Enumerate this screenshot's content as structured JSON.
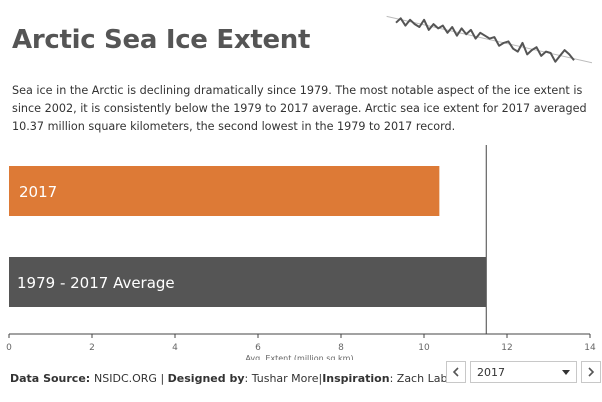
{
  "header": {
    "title": "Arctic Sea Ice Extent",
    "description": "Sea ice in the Arctic is declining dramatically since 1979. The most notable aspect of the ice extent is since 2002, it is consistently below the 1979 to 2017 average. Arctic sea ice extent for 2017 averaged 10.37 million square kilometers, the second lowest in the 1979 to 2017 record."
  },
  "sparkline": {
    "values": [
      12.3,
      12.6,
      12.1,
      12.5,
      12.2,
      12.0,
      12.5,
      11.8,
      12.2,
      11.9,
      12.1,
      11.6,
      12.0,
      11.4,
      11.9,
      11.5,
      11.8,
      11.2,
      11.6,
      11.4,
      11.2,
      11.3,
      10.7,
      10.9,
      11.0,
      10.5,
      10.3,
      10.9,
      10.1,
      10.4,
      10.6,
      10.0,
      10.3,
      10.2,
      9.6,
      10.0,
      10.4,
      10.1,
      9.7
    ],
    "color": "#555555",
    "trend_color": "#bbbbbb"
  },
  "chart_data": {
    "type": "bar",
    "orientation": "horizontal",
    "categories": [
      "2017",
      "1979 - 2017 Average"
    ],
    "values": [
      10.37,
      11.5
    ],
    "colors": [
      "#dd7a36",
      "#555555"
    ],
    "xlabel": "Avg. Extent (million sq km)",
    "xlim": [
      0,
      14
    ],
    "xticks": [
      0,
      2,
      4,
      6,
      8,
      10,
      12,
      14
    ],
    "reference_line": 11.5
  },
  "footer": {
    "source_label": "Data Source",
    "source_value": "NSIDC.ORG",
    "separator": "|",
    "designer_label": "Designed by",
    "designer_value": "Tushar More",
    "inspiration_label": "Inspiration",
    "inspiration_value": "Zach Labe"
  },
  "year_filter": {
    "selected": "2017"
  }
}
